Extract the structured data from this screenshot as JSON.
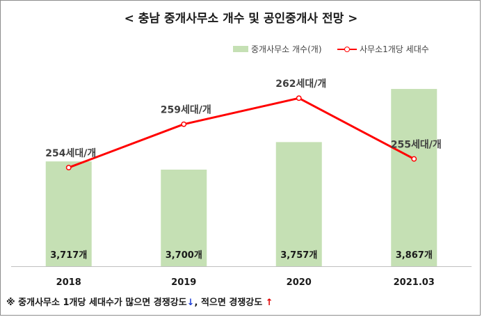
{
  "chart_data": {
    "type": "bar+line",
    "title": "< 충남  중개사무소 개수 및 공인중개사 전망 >",
    "categories": [
      "2018",
      "2019",
      "2020",
      "2021.03"
    ],
    "series": [
      {
        "name": "중개사무소 개수(개)",
        "type": "bar",
        "values": [
          3717,
          3700,
          3757,
          3867
        ],
        "labels": [
          "3,717개",
          "3,700개",
          "3,757개",
          "3,867개"
        ],
        "color": "#c5e0b4"
      },
      {
        "name": "사무소1개당 세대수",
        "type": "line",
        "values": [
          254,
          259,
          262,
          255
        ],
        "labels": [
          "254세대/개",
          "259세대/개",
          "262세대/개",
          "255세대/개"
        ],
        "color": "#ff0000"
      }
    ],
    "legend_position": "top-right",
    "grid": false
  },
  "note": {
    "prefix": "※ 중개사무소 1개당 세대수가 많으면 경쟁강도",
    "down_arrow": "↓",
    "middle": ", 적으면 경쟁강도",
    "up_arrow": "↑"
  }
}
